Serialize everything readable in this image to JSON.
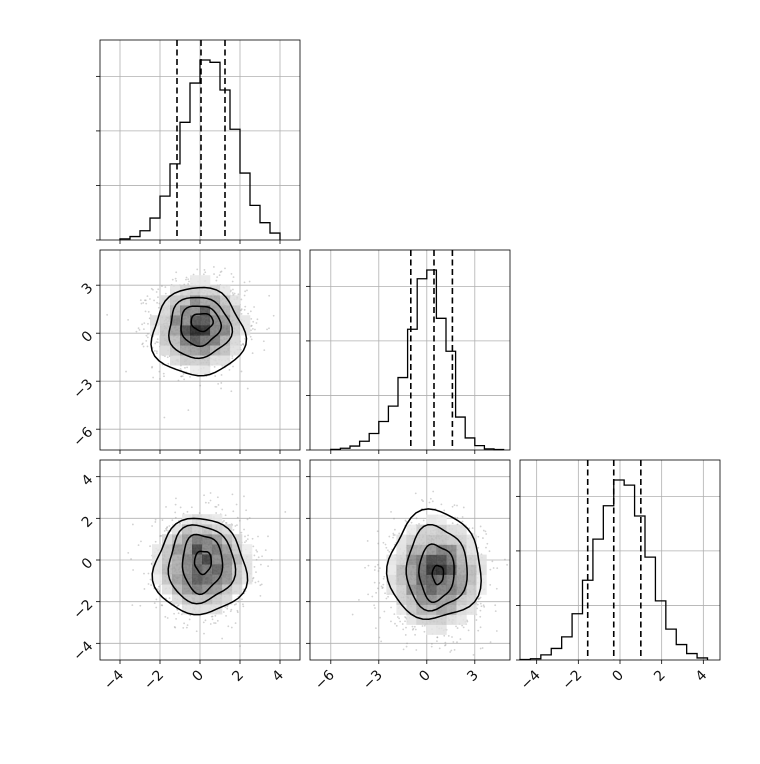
{
  "chart_data": {
    "type": "corner",
    "grid": true,
    "parameters": [
      {
        "name": "",
        "range": [
          -5,
          5
        ],
        "ticks": [
          -4,
          -2,
          0,
          2,
          4
        ],
        "tick_labels": [
          "−4",
          "−2",
          "0",
          "2",
          "4"
        ],
        "quantiles": [
          -1.15,
          0.05,
          1.25
        ],
        "hist_bin_edges": [
          -4.0,
          -3.5,
          -3.0,
          -2.5,
          -2.0,
          -1.5,
          -1.0,
          -0.5,
          0.0,
          0.5,
          1.0,
          1.5,
          2.0,
          2.5,
          3.0,
          3.5,
          4.0
        ],
        "hist_counts": [
          5,
          15,
          40,
          95,
          190,
          330,
          510,
          680,
          780,
          770,
          650,
          480,
          290,
          150,
          75,
          30
        ]
      },
      {
        "name": "",
        "range": [
          -7.3,
          5.2
        ],
        "ticks": [
          -6,
          -3,
          0,
          3
        ],
        "tick_labels": [
          "−6",
          "−3",
          "0",
          "3"
        ],
        "quantiles": [
          -1.0,
          0.45,
          1.6
        ],
        "hist_bin_edges": [
          -6.0,
          -5.4,
          -4.8,
          -4.2,
          -3.6,
          -3.0,
          -2.4,
          -1.8,
          -1.2,
          -0.6,
          0.0,
          0.6,
          1.2,
          1.8,
          2.4,
          3.0,
          3.6,
          4.2,
          4.8
        ],
        "hist_counts": [
          3,
          8,
          18,
          40,
          75,
          130,
          200,
          330,
          550,
          780,
          820,
          600,
          450,
          150,
          55,
          20,
          5,
          2
        ]
      },
      {
        "name": "",
        "range": [
          -4.8,
          4.8
        ],
        "ticks": [
          -4,
          -2,
          0,
          2,
          4
        ],
        "tick_labels": [
          "−4",
          "−2",
          "0",
          "2",
          "4"
        ],
        "quantiles": [
          -1.55,
          -0.3,
          1.0
        ],
        "hist_bin_edges": [
          -4.8,
          -4.3,
          -3.8,
          -3.3,
          -2.8,
          -2.3,
          -1.8,
          -1.3,
          -0.8,
          -0.3,
          0.2,
          0.7,
          1.2,
          1.7,
          2.2,
          2.7,
          3.2,
          3.7,
          4.2
        ],
        "hist_counts": [
          2,
          5,
          20,
          45,
          90,
          180,
          310,
          470,
          600,
          700,
          680,
          560,
          400,
          230,
          120,
          60,
          25,
          8
        ]
      }
    ],
    "pairs": [
      {
        "x_param": 0,
        "y_param": 1,
        "center": [
          0.0,
          0.5
        ],
        "contour_levels": [
          {
            "mass": 0.118,
            "center": [
              0.1,
              0.7
            ],
            "rx": 0.55,
            "ry": 0.55
          },
          {
            "mass": 0.393,
            "center": [
              0.0,
              0.5
            ],
            "rx": 1.0,
            "ry": 1.25
          },
          {
            "mass": 0.675,
            "center": [
              -0.05,
              0.35
            ],
            "rx": 1.55,
            "ry": 1.9
          },
          {
            "mass": 0.865,
            "center": [
              -0.1,
              0.05
            ],
            "rx": 2.3,
            "ry": 2.75
          }
        ]
      },
      {
        "x_param": 0,
        "y_param": 2,
        "center": [
          0.1,
          -0.2
        ],
        "contour_levels": [
          {
            "mass": 0.118,
            "center": [
              0.15,
              -0.1
            ],
            "rx": 0.42,
            "ry": 0.55
          },
          {
            "mass": 0.393,
            "center": [
              0.1,
              -0.15
            ],
            "rx": 1.0,
            "ry": 1.4
          },
          {
            "mass": 0.675,
            "center": [
              0.05,
              -0.2
            ],
            "rx": 1.65,
            "ry": 1.85
          },
          {
            "mass": 0.865,
            "center": [
              0.0,
              -0.35
            ],
            "rx": 2.3,
            "ry": 2.3
          }
        ]
      },
      {
        "x_param": 1,
        "y_param": 2,
        "center": [
          0.6,
          -0.7
        ],
        "contour_levels": [
          {
            "mass": 0.118,
            "center": [
              0.7,
              -0.7
            ],
            "rx": 0.35,
            "ry": 0.45
          },
          {
            "mass": 0.393,
            "center": [
              0.6,
              -0.6
            ],
            "rx": 1.1,
            "ry": 1.35
          },
          {
            "mass": 0.675,
            "center": [
              0.6,
              -0.4
            ],
            "rx": 1.9,
            "ry": 2.0
          },
          {
            "mass": 0.865,
            "center": [
              0.5,
              -0.3
            ],
            "rx": 2.9,
            "ry": 2.6
          }
        ]
      }
    ],
    "scatter_points_per_panel": 1500,
    "colors": {
      "line": "#000000",
      "grid": "#b0b0b0",
      "scatter": "#9a9a9a",
      "density_max": "#000000",
      "background": "#ffffff"
    }
  }
}
